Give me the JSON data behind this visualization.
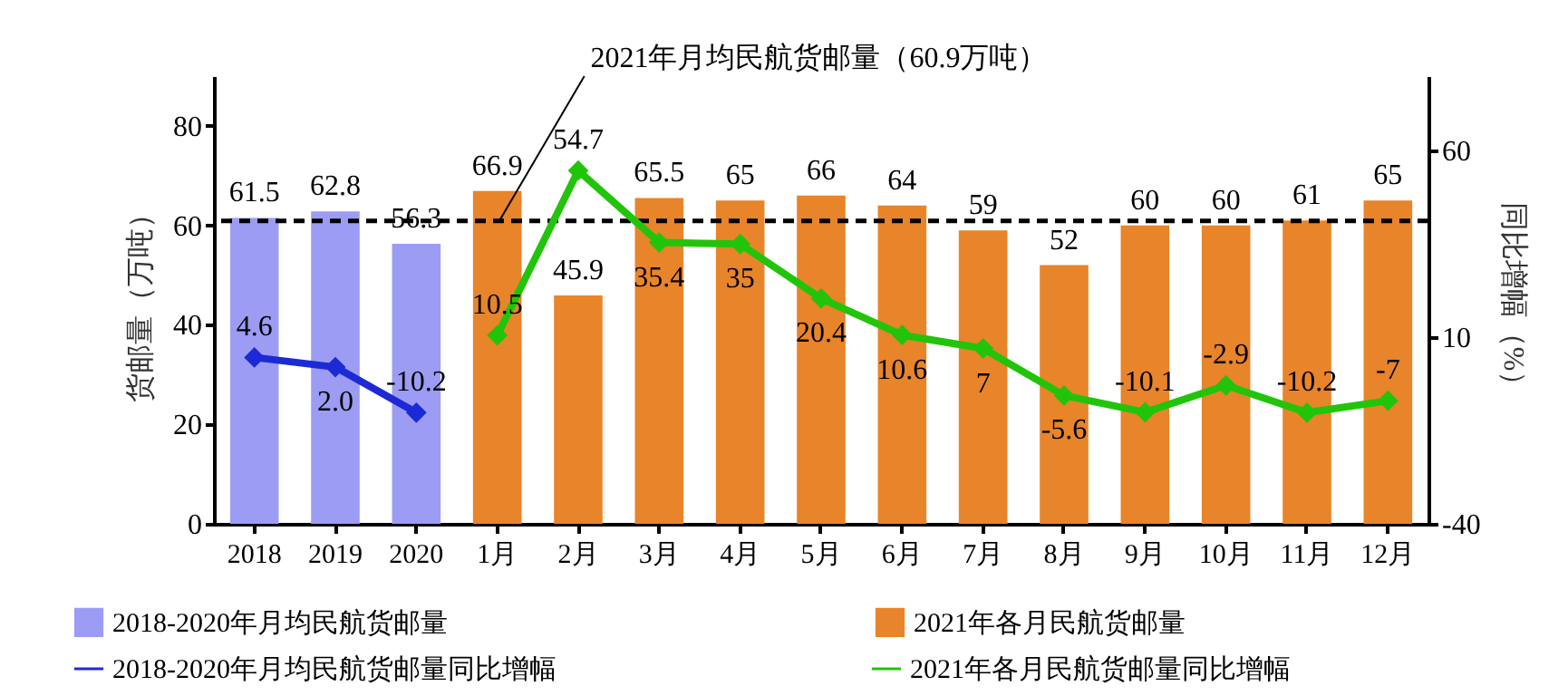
{
  "chart_data": {
    "type": "bar",
    "categories": [
      "2018",
      "2019",
      "2020",
      "1月",
      "2月",
      "3月",
      "4月",
      "5月",
      "6月",
      "7月",
      "8月",
      "9月",
      "10月",
      "11月",
      "12月"
    ],
    "series": [
      {
        "name": "2018-2020年月均民航货邮量",
        "color": "#9c9cf4",
        "values": [
          61.5,
          62.8,
          56.3,
          null,
          null,
          null,
          null,
          null,
          null,
          null,
          null,
          null,
          null,
          null,
          null
        ]
      },
      {
        "name": "2021年各月民航货邮量",
        "color": "#e8842a",
        "values": [
          null,
          null,
          null,
          66.9,
          45.9,
          65.5,
          65,
          66,
          64,
          59,
          52,
          60,
          60,
          61,
          65
        ]
      },
      {
        "name": "2018-2020年月均民航货邮量同比增幅",
        "type": "line",
        "axis": "y2",
        "color": "#1c2ad6",
        "values": [
          4.6,
          2.0,
          -10.2,
          null,
          null,
          null,
          null,
          null,
          null,
          null,
          null,
          null,
          null,
          null,
          null
        ],
        "value_labels": [
          "4.6",
          "2.0",
          "-10.2",
          null,
          null,
          null,
          null,
          null,
          null,
          null,
          null,
          null,
          null,
          null,
          null
        ]
      },
      {
        "name": "2021年各月民航货邮量同比增幅",
        "type": "line",
        "axis": "y2",
        "color": "#22c40a",
        "values": [
          null,
          null,
          null,
          10.5,
          54.7,
          35.4,
          35,
          20.4,
          10.6,
          7,
          -5.6,
          -10.1,
          -2.9,
          -10.2,
          -7
        ]
      }
    ],
    "ylabel": "货邮量（万吨）",
    "y2label": "同比增幅（%）",
    "ylim": [
      0,
      90
    ],
    "yticks": [
      0,
      20,
      40,
      60,
      80
    ],
    "y2lim": [
      -40,
      80
    ],
    "y2ticks": [
      -40,
      10,
      60
    ],
    "ref_lines": [
      {
        "axis": "y",
        "value": 60.9,
        "label": "2021年月均民航货邮量（60.9万吨）",
        "color": "#000000",
        "line_style": "dashed"
      }
    ],
    "data_labels": true,
    "marker": "diamond",
    "legend": "bottom",
    "grid": false
  }
}
